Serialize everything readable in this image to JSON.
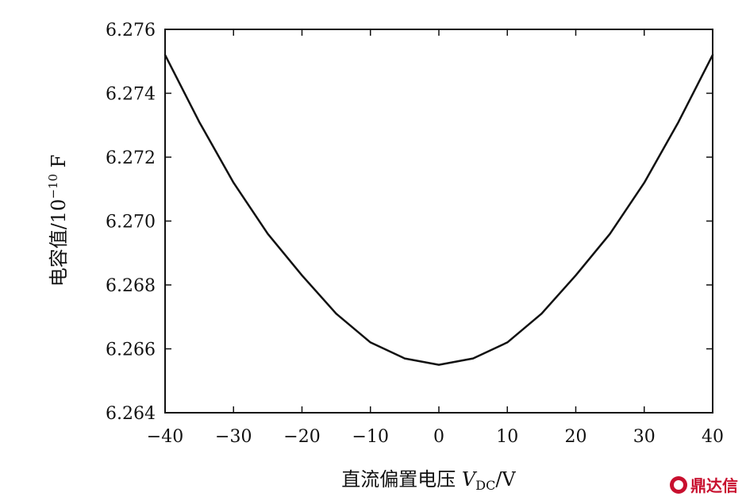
{
  "chart_data": {
    "type": "line",
    "xlabel": "直流偏置电压 V_DC/V",
    "ylabel": "电容值/10⁻¹⁰ F",
    "xlim": [
      -40,
      40
    ],
    "ylim": [
      6.264,
      6.276
    ],
    "xticks": [
      -40,
      -30,
      -20,
      -10,
      0,
      10,
      20,
      30,
      40
    ],
    "yticks": [
      6.264,
      6.266,
      6.268,
      6.27,
      6.272,
      6.274,
      6.276
    ],
    "xtick_labels": [
      "−40",
      "−30",
      "−20",
      "−10",
      "0",
      "10",
      "20",
      "30",
      "40"
    ],
    "ytick_labels": [
      "6.264",
      "6.266",
      "6.268",
      "6.270",
      "6.272",
      "6.274",
      "6.276"
    ],
    "grid": false,
    "series": [
      {
        "x": [
          -40,
          -35,
          -30,
          -25,
          -20,
          -15,
          -10,
          -5,
          0,
          5,
          10,
          15,
          20,
          25,
          30,
          35,
          40
        ],
        "values": [
          6.2752,
          6.2731,
          6.2712,
          6.2696,
          6.2683,
          6.2671,
          6.2662,
          6.2657,
          6.2655,
          6.2657,
          6.2662,
          6.2671,
          6.2683,
          6.2696,
          6.2712,
          6.2731,
          6.2752
        ]
      }
    ]
  },
  "labels": {
    "ylabel_main": "电容值/10",
    "ylabel_exp": "−10",
    "ylabel_unit": " F",
    "xlabel_main": "直流偏置电压 ",
    "xlabel_var": "V",
    "xlabel_sub": "DC",
    "xlabel_unit": "/V"
  },
  "watermark": {
    "text": "鼎达信",
    "color": "#c8102e"
  }
}
